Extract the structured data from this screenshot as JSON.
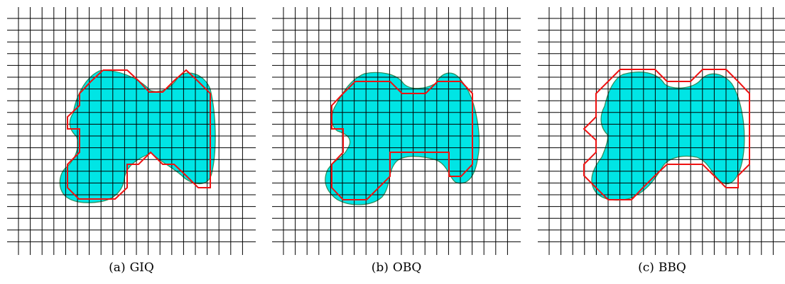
{
  "panels": [
    {
      "tag": "(a)",
      "name": "GIQ"
    },
    {
      "tag": "(b)",
      "name": "OBQ"
    },
    {
      "tag": "(c)",
      "name": "BBQ"
    }
  ],
  "colors": {
    "grid": "#000000",
    "fill": "#00e5e5",
    "outline": "#2e8b57",
    "digitization": "#ee1111"
  }
}
